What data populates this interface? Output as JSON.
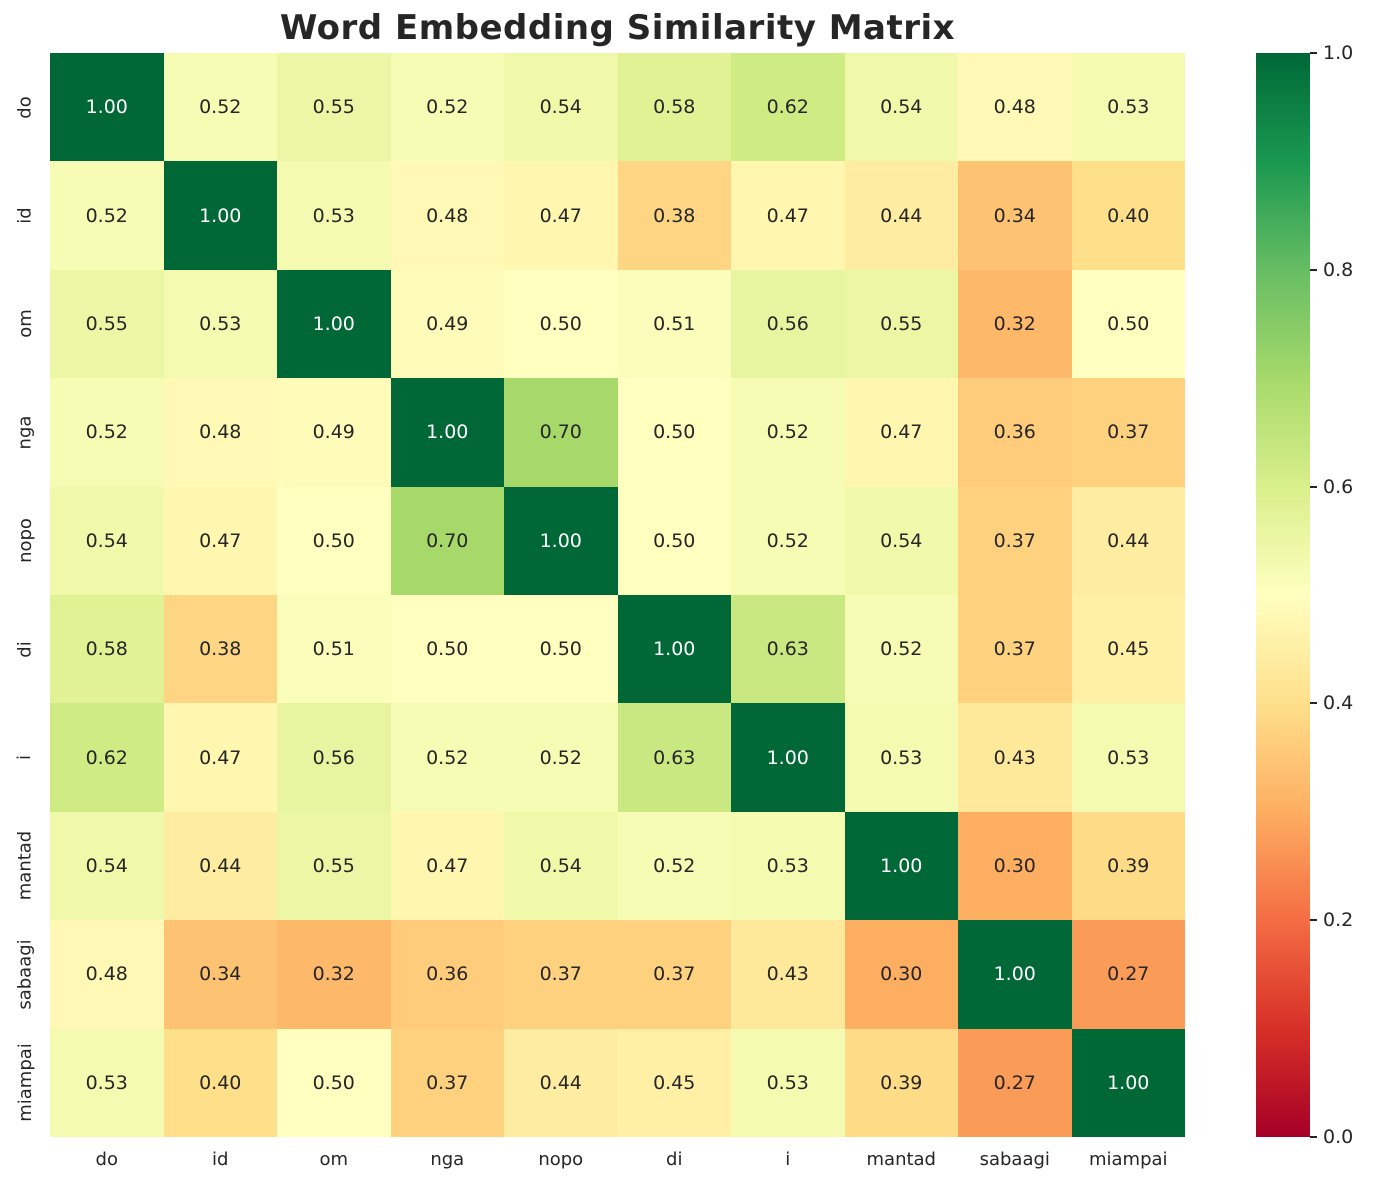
{
  "title": "Word Embedding Similarity Matrix",
  "chart_data": {
    "type": "heatmap",
    "title": "Word Embedding Similarity Matrix",
    "x_labels": [
      "do",
      "id",
      "om",
      "nga",
      "nopo",
      "di",
      "i",
      "mantad",
      "sabaagi",
      "miampai"
    ],
    "y_labels": [
      "do",
      "id",
      "om",
      "nga",
      "nopo",
      "di",
      "i",
      "mantad",
      "sabaagi",
      "miampai"
    ],
    "matrix": [
      [
        1.0,
        0.52,
        0.55,
        0.52,
        0.54,
        0.58,
        0.62,
        0.54,
        0.48,
        0.53
      ],
      [
        0.52,
        1.0,
        0.53,
        0.48,
        0.47,
        0.38,
        0.47,
        0.44,
        0.34,
        0.4
      ],
      [
        0.55,
        0.53,
        1.0,
        0.49,
        0.5,
        0.51,
        0.56,
        0.55,
        0.32,
        0.5
      ],
      [
        0.52,
        0.48,
        0.49,
        1.0,
        0.7,
        0.5,
        0.52,
        0.47,
        0.36,
        0.37
      ],
      [
        0.54,
        0.47,
        0.5,
        0.7,
        1.0,
        0.5,
        0.52,
        0.54,
        0.37,
        0.44
      ],
      [
        0.58,
        0.38,
        0.51,
        0.5,
        0.5,
        1.0,
        0.63,
        0.52,
        0.37,
        0.45
      ],
      [
        0.62,
        0.47,
        0.56,
        0.52,
        0.52,
        0.63,
        1.0,
        0.53,
        0.43,
        0.53
      ],
      [
        0.54,
        0.44,
        0.55,
        0.47,
        0.54,
        0.52,
        0.53,
        1.0,
        0.3,
        0.39
      ],
      [
        0.48,
        0.34,
        0.32,
        0.36,
        0.37,
        0.37,
        0.43,
        0.3,
        1.0,
        0.27
      ],
      [
        0.53,
        0.4,
        0.5,
        0.37,
        0.44,
        0.45,
        0.53,
        0.39,
        0.27,
        1.0
      ]
    ],
    "value_decimals": 2,
    "vmin": 0.0,
    "vmax": 1.0,
    "colormap": "RdYlGn",
    "colormap_stops": [
      {
        "pos": 0.0,
        "color": "#a50026"
      },
      {
        "pos": 0.1,
        "color": "#d73027"
      },
      {
        "pos": 0.2,
        "color": "#f46d43"
      },
      {
        "pos": 0.3,
        "color": "#fdae61"
      },
      {
        "pos": 0.4,
        "color": "#fee08b"
      },
      {
        "pos": 0.5,
        "color": "#ffffbf"
      },
      {
        "pos": 0.6,
        "color": "#d9ef8b"
      },
      {
        "pos": 0.7,
        "color": "#a6d96a"
      },
      {
        "pos": 0.8,
        "color": "#66bd63"
      },
      {
        "pos": 0.9,
        "color": "#1a9850"
      },
      {
        "pos": 1.0,
        "color": "#006837"
      }
    ],
    "colorbar_ticks": [
      1.0,
      0.8,
      0.6,
      0.4,
      0.2,
      0.0
    ],
    "colorbar_position": "right",
    "grid": false
  },
  "colors": {
    "background": "#ffffff",
    "title_color": "#262626",
    "tick_label_color": "#262626",
    "annotation_dark": "#262626",
    "annotation_light": "#ffffff"
  }
}
